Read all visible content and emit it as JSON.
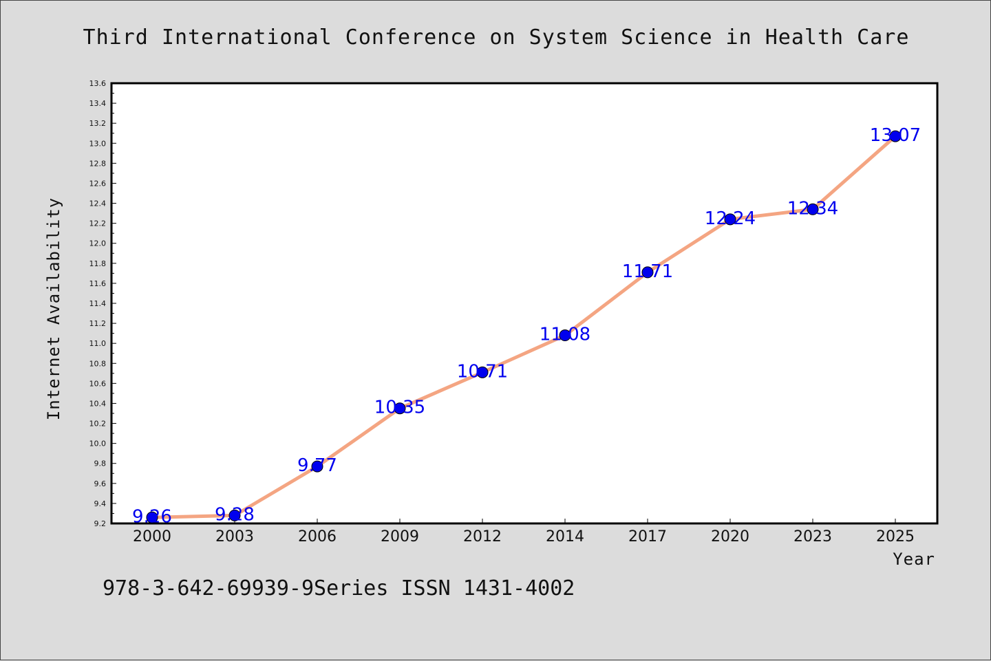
{
  "chart_data": {
    "type": "line",
    "title": "Third International Conference on System Science in Health Care",
    "xlabel": "Year",
    "ylabel": "Internet Availability",
    "categories": [
      "2000",
      "2003",
      "2006",
      "2009",
      "2012",
      "2014",
      "2017",
      "2020",
      "2023",
      "2025"
    ],
    "series": [
      {
        "values": [
          9.26,
          9.28,
          9.77,
          10.35,
          10.71,
          11.08,
          11.71,
          12.24,
          12.34,
          13.07
        ]
      }
    ],
    "data_labels": [
      "9.26",
      "9.28",
      "9.77",
      "10.35",
      "10.71",
      "11.08",
      "11.71",
      "12.24",
      "12.34",
      "13.07"
    ],
    "ylim": [
      9.2,
      13.6
    ],
    "yticks": [
      "9.2",
      "9.4",
      "9.6",
      "9.8",
      "10.0",
      "10.2",
      "10.4",
      "10.6",
      "10.8",
      "11.0",
      "11.2",
      "11.4",
      "11.6",
      "11.8",
      "12.0",
      "12.2",
      "12.4",
      "12.6",
      "12.8",
      "13.0",
      "13.2",
      "13.4",
      "13.6"
    ],
    "grid": false,
    "colors": {
      "line": "#f4a582",
      "marker": "#0000ee",
      "label": "#0000ee",
      "plot_bg": "#ffffff",
      "page_bg": "#dcdcdc"
    }
  },
  "footer": "978-3-642-69939-9Series ISSN 1431-4002"
}
